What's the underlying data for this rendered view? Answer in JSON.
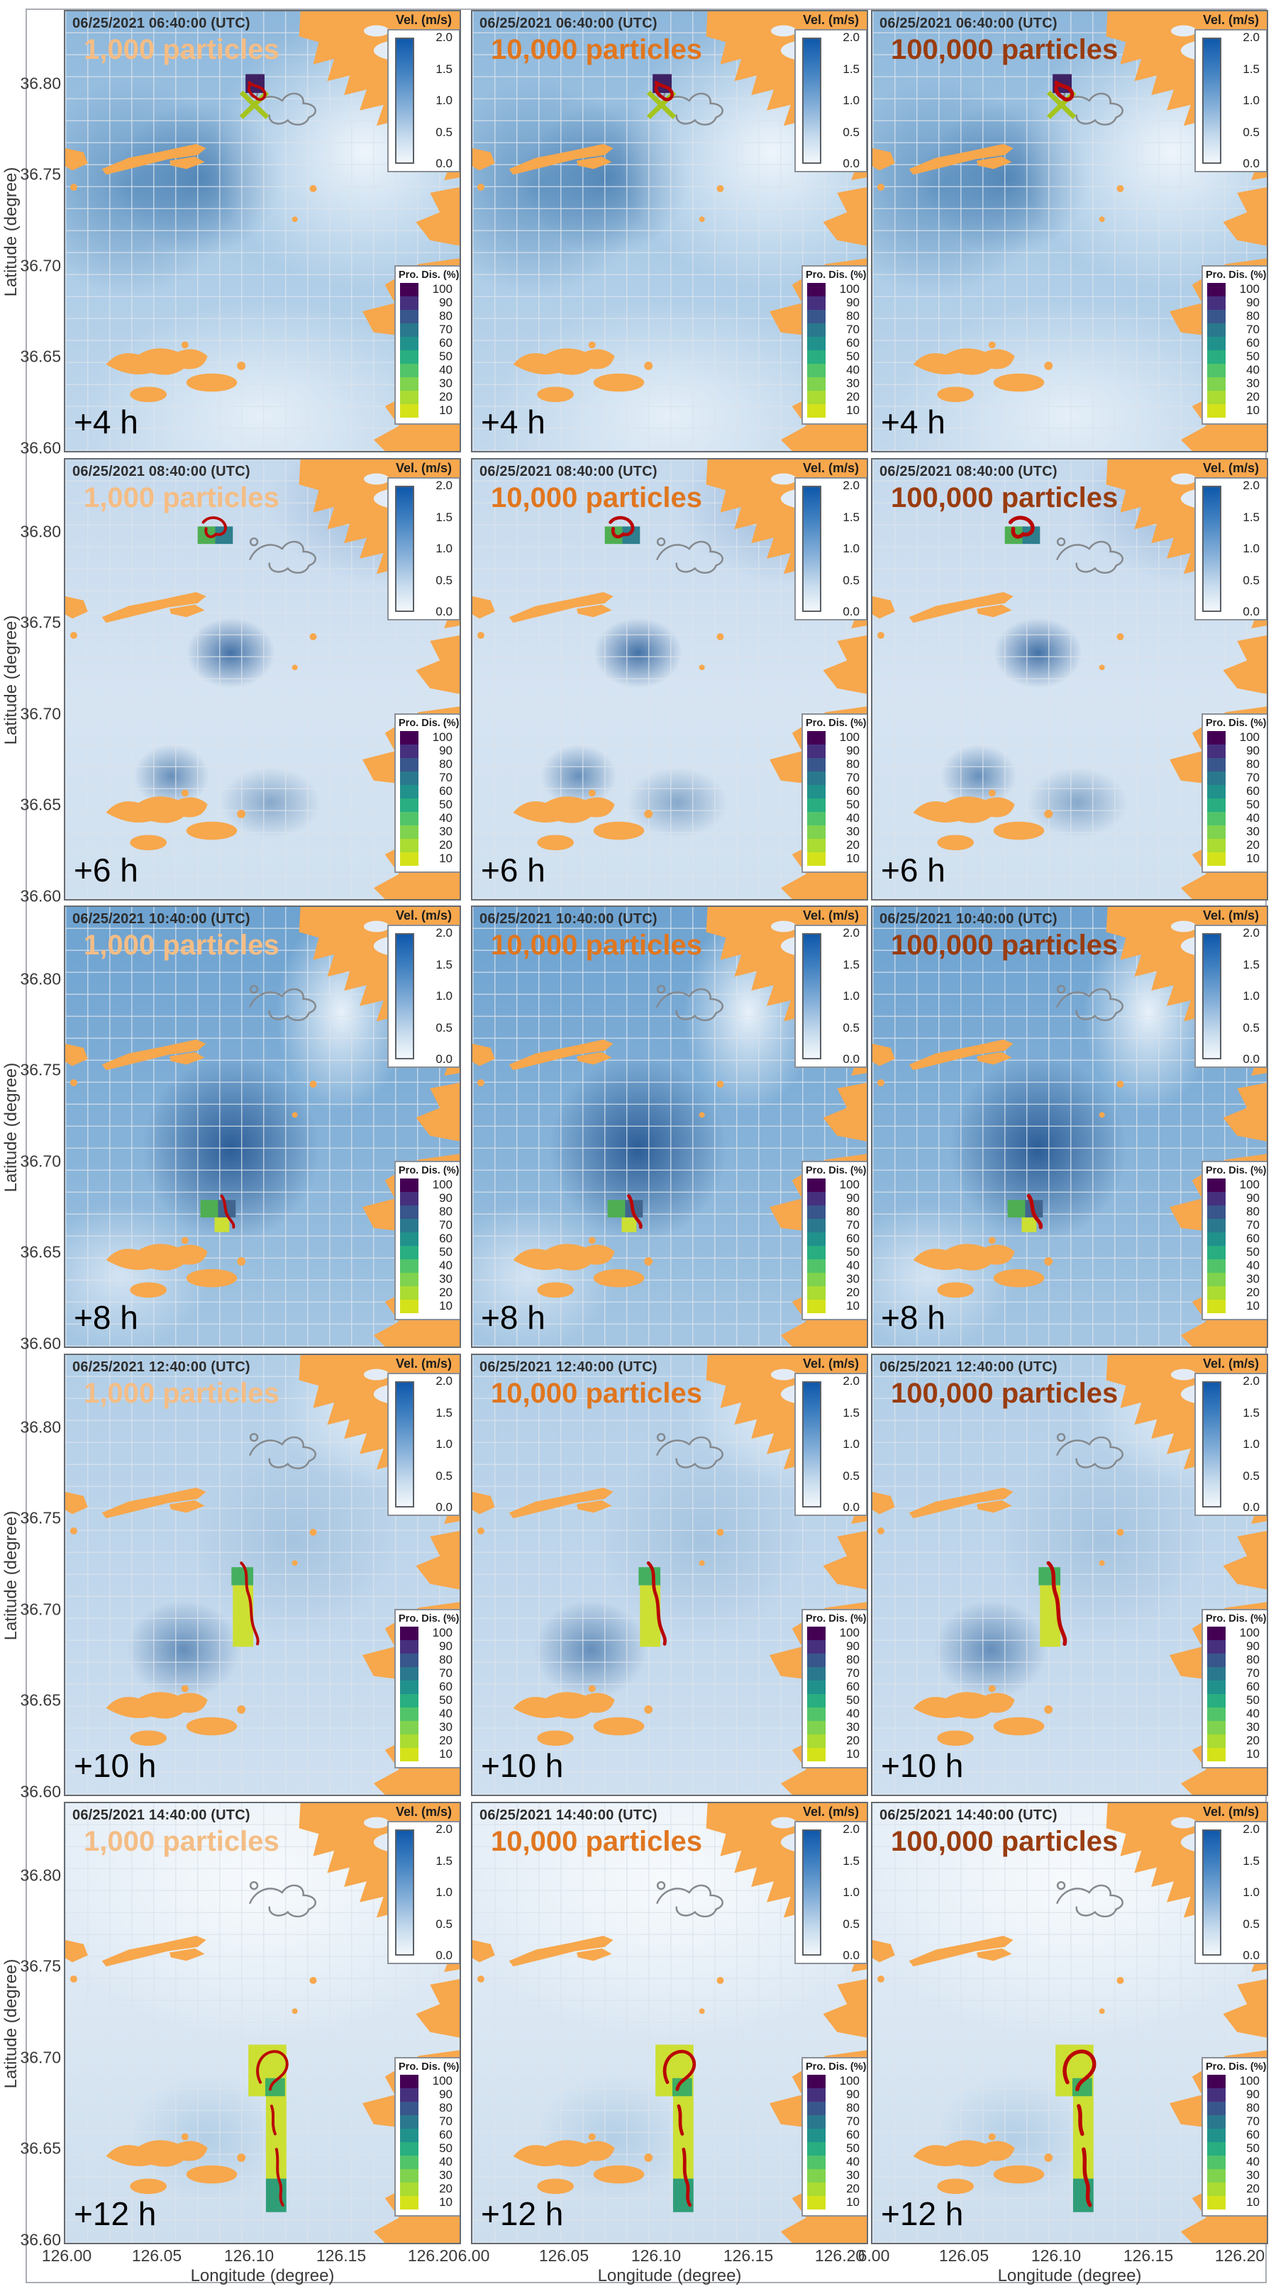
{
  "figure": {
    "columns": [
      {
        "label": "1,000 particles",
        "particles": 1000,
        "color": "#f4bd85"
      },
      {
        "label": "10,000 particles",
        "particles": 10000,
        "color": "#e0761f"
      },
      {
        "label": "100,000 particles",
        "particles": 100000,
        "color": "#993c10"
      }
    ],
    "rows": [
      {
        "timestamp": "06/25/2021 06:40:00 (UTC)",
        "elapsed": "+4 h"
      },
      {
        "timestamp": "06/25/2021 08:40:00 (UTC)",
        "elapsed": "+6 h"
      },
      {
        "timestamp": "06/25/2021 10:40:00 (UTC)",
        "elapsed": "+8 h"
      },
      {
        "timestamp": "06/25/2021 12:40:00 (UTC)",
        "elapsed": "+10 h"
      },
      {
        "timestamp": "06/25/2021 14:40:00 (UTC)",
        "elapsed": "+12 h"
      }
    ],
    "y_axis": {
      "label": "Latitude (degree)",
      "ticks": [
        "36.80",
        "36.75",
        "36.70",
        "36.65",
        "36.60"
      ]
    },
    "x_axis": {
      "label": "Longitude (degree)",
      "columns": [
        {
          "ticks": [
            "126.00",
            "126.05",
            "126.10",
            "126.15",
            "126.20"
          ]
        },
        {
          "ticks": [
            "6.00",
            "126.05",
            "126.10",
            "126.15",
            "126.20"
          ]
        },
        {
          "ticks": [
            "6.00",
            "126.05",
            "126.10",
            "126.15",
            "126.20"
          ]
        }
      ]
    },
    "colorbars": {
      "velocity": {
        "title": "Vel. (m/s)",
        "ticks": [
          "2.0",
          "1.5",
          "1.0",
          "0.5",
          "0.0"
        ]
      },
      "probability": {
        "title": "Pro. Dis. (%)",
        "ticks": [
          "100",
          "90",
          "80",
          "70",
          "60",
          "50",
          "40",
          "30",
          "20",
          "10"
        ],
        "colors": [
          "#440154",
          "#46307e",
          "#39568c",
          "#2a788e",
          "#21918c",
          "#28ae80",
          "#51c46a",
          "#7fd34e",
          "#aadc32",
          "#d4e21a"
        ]
      }
    },
    "map_colors": {
      "land": "#f7a74c",
      "sea_low": "#f2f7fb",
      "sea_high": "#0f58ab",
      "trajectory": "#b90606"
    }
  },
  "chart_data": {
    "type": "heatmap",
    "title": "",
    "description": "5x3 grid of particle-dispersion forecast maps (west coast of Korea). Rows = forecast lead time, columns = number of released particles. Blue shading = current velocity (m/s), colored grid cells = particle probability distribution (%), dark-red curves = particle trajectories from the release point near 126.10E, 36.80N.",
    "grid": {
      "rows": 5,
      "cols": 3
    },
    "rows": [
      {
        "time_utc": "06/25/2021 06:40:00",
        "elapsed_hours": 4
      },
      {
        "time_utc": "06/25/2021 08:40:00",
        "elapsed_hours": 6
      },
      {
        "time_utc": "06/25/2021 10:40:00",
        "elapsed_hours": 8
      },
      {
        "time_utc": "06/25/2021 12:40:00",
        "elapsed_hours": 10
      },
      {
        "time_utc": "06/25/2021 14:40:00",
        "elapsed_hours": 12
      }
    ],
    "columns_particles": [
      1000,
      10000,
      100000
    ],
    "x_axis": {
      "label": "Longitude (degree)",
      "range": [
        126.0,
        126.2
      ],
      "ticks": [
        126.0,
        126.05,
        126.1,
        126.15,
        126.2
      ]
    },
    "y_axis": {
      "label": "Latitude (degree)",
      "range": [
        36.6,
        36.84
      ],
      "ticks": [
        36.8,
        36.75,
        36.7,
        36.65,
        36.6
      ]
    },
    "colorbars": [
      {
        "label": "Vel. (m/s)",
        "min": 0.0,
        "max": 2.0,
        "ticks": [
          2.0,
          1.5,
          1.0,
          0.5,
          0.0
        ]
      },
      {
        "label": "Pro. Dis. (%)",
        "ticks": [
          100,
          90,
          80,
          70,
          60,
          50,
          40,
          30,
          20,
          10
        ]
      }
    ],
    "release_point": {
      "lon": 126.1,
      "lat": 36.8
    },
    "plume_drift": "Particle cloud drifts southward from ~36.80N at +4 h to ~36.62-36.70N along ~126.10-126.11E by +12 h"
  }
}
